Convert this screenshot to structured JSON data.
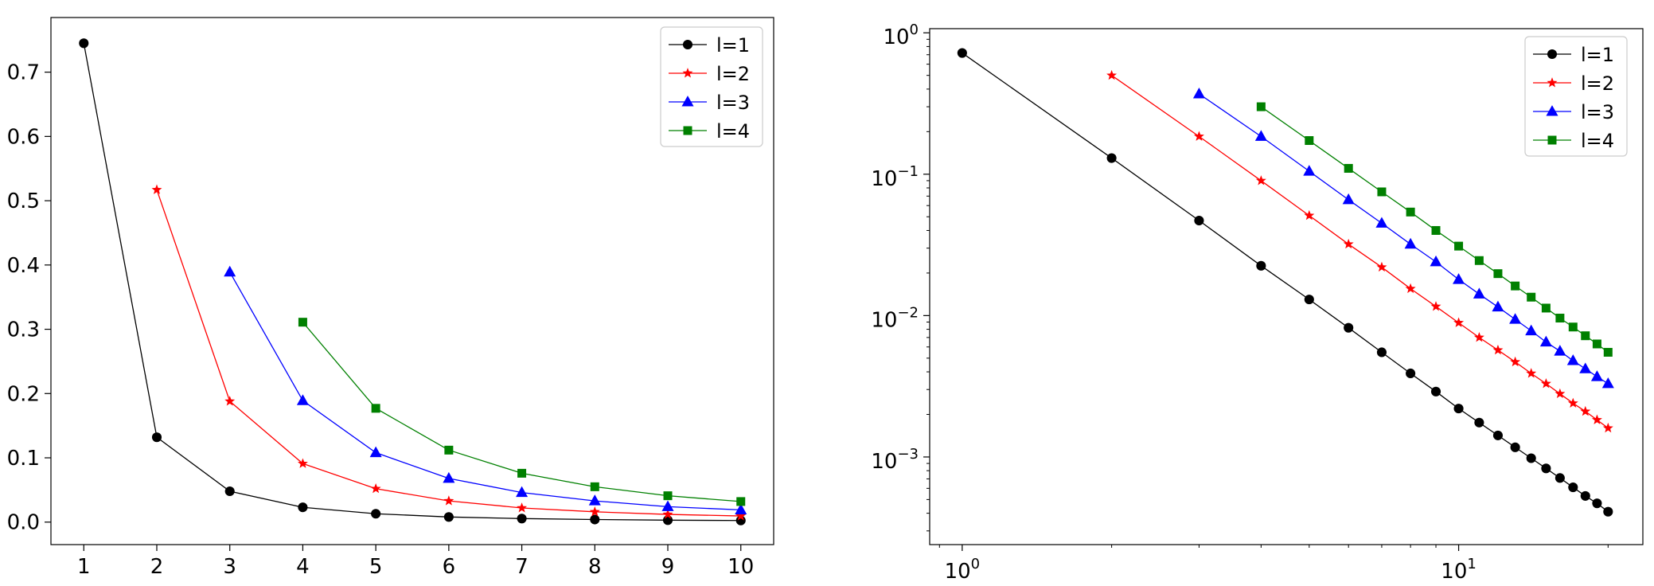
{
  "chart_data": [
    {
      "type": "line",
      "xscale": "linear",
      "yscale": "linear",
      "xlim": [
        0.55,
        10.45
      ],
      "ylim": [
        -0.035,
        0.785
      ],
      "xticks": [
        1,
        2,
        3,
        4,
        5,
        6,
        7,
        8,
        9,
        10
      ],
      "xtick_labels": [
        "1",
        "2",
        "3",
        "4",
        "5",
        "6",
        "7",
        "8",
        "9",
        "10"
      ],
      "yticks": [
        0.0,
        0.1,
        0.2,
        0.3,
        0.4,
        0.5,
        0.6,
        0.7
      ],
      "ytick_labels": [
        "0.0",
        "0.1",
        "0.2",
        "0.3",
        "0.4",
        "0.5",
        "0.6",
        "0.7"
      ],
      "grid": false,
      "legend": "top-right",
      "series": [
        {
          "name": "l=1",
          "color": "#000000",
          "marker": "circle",
          "x": [
            1,
            2,
            3,
            4,
            5,
            6,
            7,
            8,
            9,
            10
          ],
          "y": [
            0.745,
            0.132,
            0.048,
            0.023,
            0.013,
            0.008,
            0.0055,
            0.004,
            0.003,
            0.0025
          ]
        },
        {
          "name": "l=2",
          "color": "#ff0000",
          "marker": "star",
          "x": [
            2,
            3,
            4,
            5,
            6,
            7,
            8,
            9,
            10
          ],
          "y": [
            0.517,
            0.188,
            0.091,
            0.052,
            0.033,
            0.022,
            0.016,
            0.012,
            0.0095
          ]
        },
        {
          "name": "l=3",
          "color": "#0000ff",
          "marker": "triangle",
          "x": [
            3,
            4,
            5,
            6,
            7,
            8,
            9,
            10
          ],
          "y": [
            0.389,
            0.189,
            0.108,
            0.068,
            0.046,
            0.033,
            0.024,
            0.019
          ]
        },
        {
          "name": "l=4",
          "color": "#008000",
          "marker": "square",
          "x": [
            4,
            5,
            6,
            7,
            8,
            9,
            10
          ],
          "y": [
            0.311,
            0.177,
            0.112,
            0.076,
            0.055,
            0.041,
            0.032
          ]
        }
      ]
    },
    {
      "type": "line",
      "xscale": "log",
      "yscale": "log",
      "xlim": [
        0.86,
        23.5
      ],
      "ylim": [
        0.00024,
        1.07
      ],
      "xticks": [
        1,
        10
      ],
      "xtick_labels": [
        "10^0",
        "10^1"
      ],
      "yticks": [
        0.001,
        0.01,
        0.1,
        1
      ],
      "ytick_labels": [
        "10^-3",
        "10^-2",
        "10^-1",
        "10^0"
      ],
      "grid": false,
      "legend": "top-right",
      "series": [
        {
          "name": "l=1",
          "color": "#000000",
          "marker": "circle",
          "x": [
            1,
            2,
            3,
            4,
            5,
            6,
            7,
            8,
            9,
            10,
            11,
            12,
            13,
            14,
            15,
            16,
            17,
            18,
            19,
            20
          ],
          "y": [
            0.72,
            0.13,
            0.047,
            0.0225,
            0.013,
            0.0082,
            0.0055,
            0.0039,
            0.0029,
            0.0022,
            0.00175,
            0.00142,
            0.00117,
            0.00098,
            0.00083,
            0.00071,
            0.00061,
            0.00053,
            0.00047,
            0.00041
          ]
        },
        {
          "name": "l=2",
          "color": "#ff0000",
          "marker": "star",
          "x": [
            2,
            3,
            4,
            5,
            6,
            7,
            8,
            9,
            10,
            11,
            12,
            13,
            14,
            15,
            16,
            17,
            18,
            19,
            20
          ],
          "y": [
            0.5,
            0.185,
            0.09,
            0.051,
            0.032,
            0.022,
            0.0155,
            0.0116,
            0.0089,
            0.007,
            0.0057,
            0.0047,
            0.0039,
            0.0033,
            0.0028,
            0.0024,
            0.0021,
            0.00183,
            0.0016
          ]
        },
        {
          "name": "l=3",
          "color": "#0000ff",
          "marker": "triangle",
          "x": [
            3,
            4,
            5,
            6,
            7,
            8,
            9,
            10,
            11,
            12,
            13,
            14,
            15,
            16,
            17,
            18,
            19,
            20
          ],
          "y": [
            0.37,
            0.185,
            0.105,
            0.066,
            0.045,
            0.032,
            0.024,
            0.018,
            0.0142,
            0.0115,
            0.0094,
            0.0078,
            0.0065,
            0.0056,
            0.0048,
            0.0042,
            0.0037,
            0.0033
          ]
        },
        {
          "name": "l=4",
          "color": "#008000",
          "marker": "square",
          "x": [
            4,
            5,
            6,
            7,
            8,
            9,
            10,
            11,
            12,
            13,
            14,
            15,
            16,
            17,
            18,
            19,
            20
          ],
          "y": [
            0.3,
            0.173,
            0.11,
            0.075,
            0.054,
            0.04,
            0.031,
            0.0245,
            0.0198,
            0.0162,
            0.0135,
            0.0113,
            0.0096,
            0.0083,
            0.0072,
            0.0063,
            0.0055
          ]
        }
      ]
    }
  ]
}
